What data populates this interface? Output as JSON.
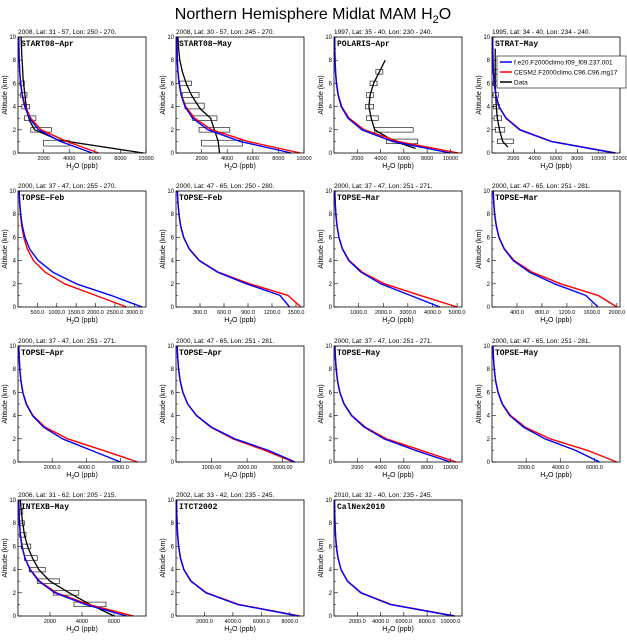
{
  "title": {
    "main": "Northern Hemisphere Midlat MAM H",
    "sub": "2",
    "tail": "O"
  },
  "colors": {
    "model1": "#0000ff",
    "model2": "#ff0000",
    "data": "#000000"
  },
  "legend": {
    "entries": [
      {
        "label": "f.e20.F2000climo.f09_f09.237.001",
        "color": "#0000ff"
      },
      {
        "label": "CESM2.F2000climo.C96.C96.mg17",
        "color": "#ff0000"
      },
      {
        "label": "Data",
        "color": "#000000"
      }
    ]
  },
  "axis_text": {
    "ylabel": "Altitude (km)",
    "xlabel_main": "H",
    "xlabel_sub": "2",
    "xlabel_tail": "O (ppb)"
  },
  "chart_data": [
    {
      "type": "line",
      "info": "2008, Lat: 31 - 57, Lon: 250 - 270.",
      "campaign": "START08−Apr",
      "xmax": 10000,
      "xticks": [
        {
          "v": 2000,
          "t": "2000"
        },
        {
          "v": 4000,
          "t": "4000"
        },
        {
          "v": 6000,
          "t": "6000"
        },
        {
          "v": 8000,
          "t": "8000"
        },
        {
          "v": 10000,
          "t": "10000"
        }
      ],
      "m1": [
        5800,
        3300,
        1600,
        900,
        520,
        320,
        200,
        130,
        90,
        70,
        60
      ],
      "m2": [
        6300,
        3800,
        1800,
        1000,
        560,
        340,
        210,
        135,
        92,
        72,
        62
      ],
      "obs": {
        "line": [
          [
            9800,
            0
          ],
          [
            6200,
            0.6
          ],
          [
            3200,
            1.1
          ],
          [
            1300,
            2
          ],
          [
            900,
            2.8
          ],
          [
            700,
            3.6
          ],
          [
            600,
            4.4
          ],
          [
            500,
            5.4
          ],
          [
            400,
            6.4
          ],
          [
            350,
            7.4
          ],
          [
            300,
            8.4
          ],
          [
            260,
            9.5
          ],
          [
            240,
            10
          ]
        ],
        "boxes": [
          [
            2000,
            4000,
            0.6,
            1.1
          ],
          [
            1000,
            2600,
            1.8,
            2.2
          ],
          [
            500,
            1400,
            2.8,
            3.2
          ],
          [
            300,
            900,
            3.8,
            4.2
          ],
          [
            200,
            700,
            4.8,
            5.2
          ],
          [
            150,
            500,
            5.8,
            6.2
          ]
        ]
      }
    },
    {
      "type": "line",
      "info": "2008, Lat: 30 - 57, Lon: 245 - 270.",
      "campaign": "START08−May",
      "xmax": 10000,
      "xticks": [
        {
          "v": 2000,
          "t": "2000"
        },
        {
          "v": 4000,
          "t": "4000"
        },
        {
          "v": 6000,
          "t": "6000"
        },
        {
          "v": 8000,
          "t": "8000"
        },
        {
          "v": 10000,
          "t": "10000"
        }
      ],
      "m1": [
        9000,
        5000,
        2500,
        1300,
        700,
        400,
        240,
        150,
        100,
        75,
        62
      ],
      "m2": [
        9700,
        5600,
        2800,
        1450,
        760,
        430,
        255,
        158,
        104,
        77,
        64
      ],
      "obs": {
        "line": [
          [
            3400,
            0
          ],
          [
            3300,
            1
          ],
          [
            3000,
            2
          ],
          [
            2700,
            3
          ],
          [
            1900,
            3.8
          ],
          [
            1600,
            4.3
          ],
          [
            1200,
            5
          ],
          [
            800,
            6
          ],
          [
            500,
            7
          ],
          [
            300,
            8
          ],
          [
            200,
            9
          ],
          [
            150,
            10
          ]
        ],
        "boxes": [
          [
            2000,
            5200,
            0.6,
            1.1
          ],
          [
            1800,
            4200,
            1.8,
            2.2
          ],
          [
            1300,
            3200,
            2.8,
            3.2
          ],
          [
            700,
            2200,
            3.8,
            4.3
          ],
          [
            500,
            1800,
            4.8,
            5.2
          ],
          [
            300,
            1200,
            5.8,
            6.2
          ]
        ]
      }
    },
    {
      "type": "line",
      "info": "1997, Lat: 35 - 40, Lon: 230 - 240.",
      "campaign": "POLARIS−Apr",
      "xmax": 11000,
      "xticks": [
        {
          "v": 2000,
          "t": "2000"
        },
        {
          "v": 4000,
          "t": "4000"
        },
        {
          "v": 6000,
          "t": "6000"
        },
        {
          "v": 8000,
          "t": "8000"
        },
        {
          "v": 10000,
          "t": "10000"
        }
      ],
      "m1": [
        10000,
        5000,
        2400,
        1200,
        620,
        350,
        210,
        130,
        90,
        70,
        60
      ],
      "m2": [
        10700,
        5500,
        2600,
        1300,
        660,
        370,
        220,
        135,
        92,
        72,
        62
      ],
      "obs": {
        "line": [
          [
            7000,
            0.4
          ],
          [
            5200,
            1
          ],
          [
            3500,
            2
          ],
          [
            3200,
            3
          ],
          [
            3000,
            4
          ],
          [
            3100,
            5
          ],
          [
            3400,
            6
          ],
          [
            3900,
            7
          ],
          [
            4200,
            7.6
          ],
          [
            4400,
            8
          ]
        ],
        "boxes": [
          [
            4500,
            7200,
            0.8,
            1.2
          ],
          [
            3500,
            6800,
            1.8,
            2.2
          ],
          [
            2800,
            3800,
            2.8,
            3.2
          ],
          [
            2700,
            3400,
            3.8,
            4.2
          ],
          [
            2800,
            3400,
            4.8,
            5.2
          ],
          [
            3100,
            3700,
            5.8,
            6.2
          ],
          [
            3600,
            4200,
            6.8,
            7.2
          ]
        ]
      }
    },
    {
      "type": "line",
      "info": "1995, Lat: 34 - 40, Lon: 234 - 240.",
      "campaign": "STRAT−May",
      "xmax": 12000,
      "xticks": [
        {
          "v": 2000,
          "t": "2000"
        },
        {
          "v": 4000,
          "t": "4000"
        },
        {
          "v": 6000,
          "t": "6000"
        },
        {
          "v": 8000,
          "t": "8000"
        },
        {
          "v": 10000,
          "t": "10000"
        },
        {
          "v": 12000,
          "t": "12000"
        }
      ],
      "m1": [
        11500,
        5500,
        2600,
        1300,
        650,
        360,
        210,
        130,
        90,
        70,
        60
      ],
      "m2": [
        11600,
        5600,
        2650,
        1330,
        665,
        370,
        215,
        133,
        92,
        72,
        62
      ],
      "obs": {
        "line": [
          [
            1500,
            0.5
          ],
          [
            1000,
            1
          ],
          [
            700,
            2
          ],
          [
            500,
            3
          ],
          [
            400,
            4
          ],
          [
            350,
            5
          ],
          [
            300,
            6
          ],
          [
            300,
            7
          ],
          [
            300,
            8
          ],
          [
            300,
            9
          ]
        ],
        "boxes": [
          [
            500,
            2000,
            0.8,
            1.2
          ],
          [
            300,
            1200,
            1.8,
            2.2
          ],
          [
            200,
            900,
            2.8,
            3.2
          ],
          [
            150,
            700,
            3.8,
            4.2
          ],
          [
            100,
            600,
            4.8,
            5.2
          ],
          [
            100,
            600,
            5.8,
            6.2
          ],
          [
            100,
            600,
            6.8,
            7.2
          ]
        ]
      }
    },
    {
      "type": "line",
      "info": "2000, Lat: 37 - 47, Lon: 255 - 270.",
      "campaign": "TOPSE−Feb",
      "xmin": 0,
      "xmax": 3300,
      "xticks": [
        {
          "v": 500,
          "t": "500.0"
        },
        {
          "v": 1000,
          "t": "1000.0"
        },
        {
          "v": 1500,
          "t": "1500.0"
        },
        {
          "v": 2000,
          "t": "2000.0"
        },
        {
          "v": 2500,
          "t": "2500.0"
        },
        {
          "v": 3000,
          "t": "3000.0"
        }
      ],
      "m1": [
        3200,
        2400,
        1500,
        900,
        520,
        300,
        180,
        110,
        70,
        45,
        30
      ],
      "m2": [
        2800,
        2000,
        1200,
        700,
        400,
        240,
        150,
        95,
        62,
        40,
        28
      ],
      "obs": null
    },
    {
      "type": "line",
      "info": "2000, Lat: 47 - 65, Lon: 250 - 280.",
      "campaign": "TOPSE−Feb",
      "xmin": 0,
      "xmax": 1600,
      "xticks": [
        {
          "v": 300,
          "t": "300.0"
        },
        {
          "v": 600,
          "t": "600.0"
        },
        {
          "v": 900,
          "t": "900.0"
        },
        {
          "v": 1200,
          "t": "1200.0"
        },
        {
          "v": 1500,
          "t": "1500.0"
        }
      ],
      "m1": [
        1420,
        1300,
        880,
        520,
        290,
        165,
        95,
        58,
        36,
        24,
        16
      ],
      "m2": [
        1560,
        1400,
        920,
        530,
        295,
        168,
        97,
        59,
        37,
        25,
        17
      ],
      "obs": null
    },
    {
      "type": "line",
      "info": "2000, Lat: 37 - 47, Lon: 251 - 271.",
      "campaign": "TOPSE−Mar",
      "xmin": 0,
      "xmax": 5200,
      "xticks": [
        {
          "v": 1000,
          "t": "1000.0"
        },
        {
          "v": 2000,
          "t": "2000.0"
        },
        {
          "v": 3000,
          "t": "3000.0"
        },
        {
          "v": 4000,
          "t": "4000.0"
        },
        {
          "v": 5000,
          "t": "5000.0"
        }
      ],
      "m1": [
        4300,
        3100,
        1900,
        1100,
        600,
        340,
        200,
        120,
        75,
        48,
        32
      ],
      "m2": [
        5000,
        3500,
        2050,
        1150,
        620,
        350,
        205,
        123,
        77,
        49,
        33
      ],
      "obs": null
    },
    {
      "type": "line",
      "info": "2000, Lat: 47 - 65, Lon: 251 - 281.",
      "campaign": "TOPSE−Mar",
      "xmin": 0,
      "xmax": 2050,
      "xticks": [
        {
          "v": 400,
          "t": "400.0"
        },
        {
          "v": 800,
          "t": "800.0"
        },
        {
          "v": 1200,
          "t": "1200.0"
        },
        {
          "v": 1600,
          "t": "1600.0"
        },
        {
          "v": 2000,
          "t": "2000.0"
        }
      ],
      "m1": [
        1700,
        1500,
        1000,
        600,
        340,
        195,
        110,
        68,
        42,
        28,
        19
      ],
      "m2": [
        2000,
        1700,
        1100,
        640,
        355,
        200,
        113,
        70,
        43,
        29,
        20
      ],
      "obs": null
    },
    {
      "type": "line",
      "info": "2000, Lat: 37 - 47, Lon: 251 - 271.",
      "campaign": "TOPSE−Apr",
      "xmin": 0,
      "xmax": 7500,
      "xticks": [
        {
          "v": 2000,
          "t": "2000.0"
        },
        {
          "v": 4000,
          "t": "4000.0"
        },
        {
          "v": 6000,
          "t": "6000.0"
        }
      ],
      "m1": [
        6000,
        4300,
        2600,
        1500,
        850,
        480,
        280,
        170,
        105,
        68,
        45
      ],
      "m2": [
        7000,
        5000,
        2900,
        1600,
        880,
        490,
        285,
        173,
        107,
        69,
        46
      ],
      "obs": null
    },
    {
      "type": "line",
      "info": "2000, Lat: 47 - 65, Lon: 251 - 281.",
      "campaign": "TOPSE−Apr",
      "xmin": 0,
      "xmax": 3600,
      "xticks": [
        {
          "v": 1000,
          "t": "1000.00"
        },
        {
          "v": 2000,
          "t": "2000.00"
        },
        {
          "v": 3000,
          "t": "3000.00"
        }
      ],
      "m1": [
        3350,
        2600,
        1650,
        1000,
        580,
        330,
        195,
        118,
        73,
        47,
        31
      ],
      "m2": [
        3300,
        2500,
        1600,
        980,
        570,
        325,
        192,
        116,
        72,
        46,
        30
      ],
      "obs": null
    },
    {
      "type": "line",
      "info": "2000, Lat: 37 - 47, Lon: 251 - 271.",
      "campaign": "TOPSE−May",
      "xmin": 0,
      "xmax": 11000,
      "xticks": [
        {
          "v": 2000,
          "t": "2000"
        },
        {
          "v": 4000,
          "t": "4000"
        },
        {
          "v": 6000,
          "t": "6000"
        },
        {
          "v": 8000,
          "t": "8000"
        },
        {
          "v": 10000,
          "t": "10000"
        }
      ],
      "m1": [
        10000,
        7000,
        4300,
        2600,
        1500,
        860,
        500,
        300,
        185,
        118,
        78
      ],
      "m2": [
        10500,
        7500,
        4500,
        2700,
        1550,
        880,
        510,
        305,
        188,
        120,
        79
      ],
      "obs": null
    },
    {
      "type": "line",
      "info": "2000, Lat: 47 - 65, Lon: 251 - 281.",
      "campaign": "TOPSE−May",
      "xmin": 0,
      "xmax": 7500,
      "xticks": [
        {
          "v": 2000,
          "t": "2000.0"
        },
        {
          "v": 4000,
          "t": "4000.0"
        },
        {
          "v": 6000,
          "t": "6000.0"
        }
      ],
      "m1": [
        6300,
        4900,
        3100,
        1850,
        1050,
        600,
        350,
        210,
        130,
        84,
        56
      ],
      "m2": [
        7300,
        5600,
        3400,
        1950,
        1090,
        615,
        355,
        213,
        132,
        85,
        57
      ],
      "obs": null
    },
    {
      "type": "line",
      "info": "2006, Lat: 31 - 62, Lon: 205 - 215.",
      "campaign": "INTEXB−May",
      "xmin": 0,
      "xmax": 8000,
      "xticks": [
        {
          "v": 2000,
          "t": "2000"
        },
        {
          "v": 4000,
          "t": "4000"
        },
        {
          "v": 6000,
          "t": "6000"
        }
      ],
      "m1": [
        6800,
        4200,
        2300,
        1300,
        750,
        430,
        250,
        150,
        95,
        62,
        42
      ],
      "m2": [
        7200,
        4400,
        2400,
        1350,
        770,
        440,
        255,
        153,
        97,
        63,
        43
      ],
      "obs": {
        "line": [
          [
            6000,
            0
          ],
          [
            4500,
            1
          ],
          [
            3200,
            2
          ],
          [
            2000,
            3
          ],
          [
            1300,
            4
          ],
          [
            900,
            5
          ],
          [
            600,
            6
          ],
          [
            400,
            7
          ],
          [
            300,
            8
          ],
          [
            200,
            9
          ],
          [
            150,
            10
          ]
        ],
        "boxes": [
          [
            3500,
            5500,
            0.8,
            1.2
          ],
          [
            2200,
            3800,
            1.8,
            2.2
          ],
          [
            1200,
            2600,
            2.8,
            3.2
          ],
          [
            700,
            1700,
            3.8,
            4.2
          ],
          [
            400,
            1200,
            4.8,
            5.2
          ],
          [
            200,
            800,
            5.8,
            6.2
          ],
          [
            100,
            500,
            6.8,
            7.2
          ],
          [
            60,
            400,
            7.8,
            8.2
          ],
          [
            50,
            300,
            8.8,
            9.2
          ]
        ]
      }
    },
    {
      "type": "line",
      "info": "2002, Lat: 33 - 42, Lon: 235 - 245.",
      "campaign": "ITCT2002",
      "xmin": 0,
      "xmax": 9000,
      "xticks": [
        {
          "v": 2000,
          "t": "2000.0"
        },
        {
          "v": 4000,
          "t": "4000.0"
        },
        {
          "v": 6000,
          "t": "6000.0"
        },
        {
          "v": 8000,
          "t": "8000.0"
        }
      ],
      "m1": [
        8600,
        4300,
        2100,
        1050,
        550,
        310,
        185,
        115,
        75,
        52,
        38
      ],
      "m2": [
        8700,
        4400,
        2150,
        1070,
        560,
        315,
        188,
        117,
        76,
        53,
        39
      ],
      "obs": null
    },
    {
      "type": "line",
      "info": "2010, Lat: 32 - 40, Lon: 235 - 245.",
      "campaign": "CalNex2010",
      "xmin": 0,
      "xmax": 11000,
      "xticks": [
        {
          "v": 2000,
          "t": "2000.0"
        },
        {
          "v": 4000,
          "t": "4000.0"
        },
        {
          "v": 6000,
          "t": "6000.0"
        },
        {
          "v": 8000,
          "t": "8000.0"
        },
        {
          "v": 10000,
          "t": "10000.0"
        }
      ],
      "m1": [
        10300,
        4800,
        2300,
        1150,
        600,
        340,
        200,
        125,
        82,
        57,
        42
      ],
      "m2": [
        10400,
        4900,
        2350,
        1170,
        610,
        345,
        203,
        127,
        83,
        58,
        43
      ],
      "obs": null
    }
  ]
}
